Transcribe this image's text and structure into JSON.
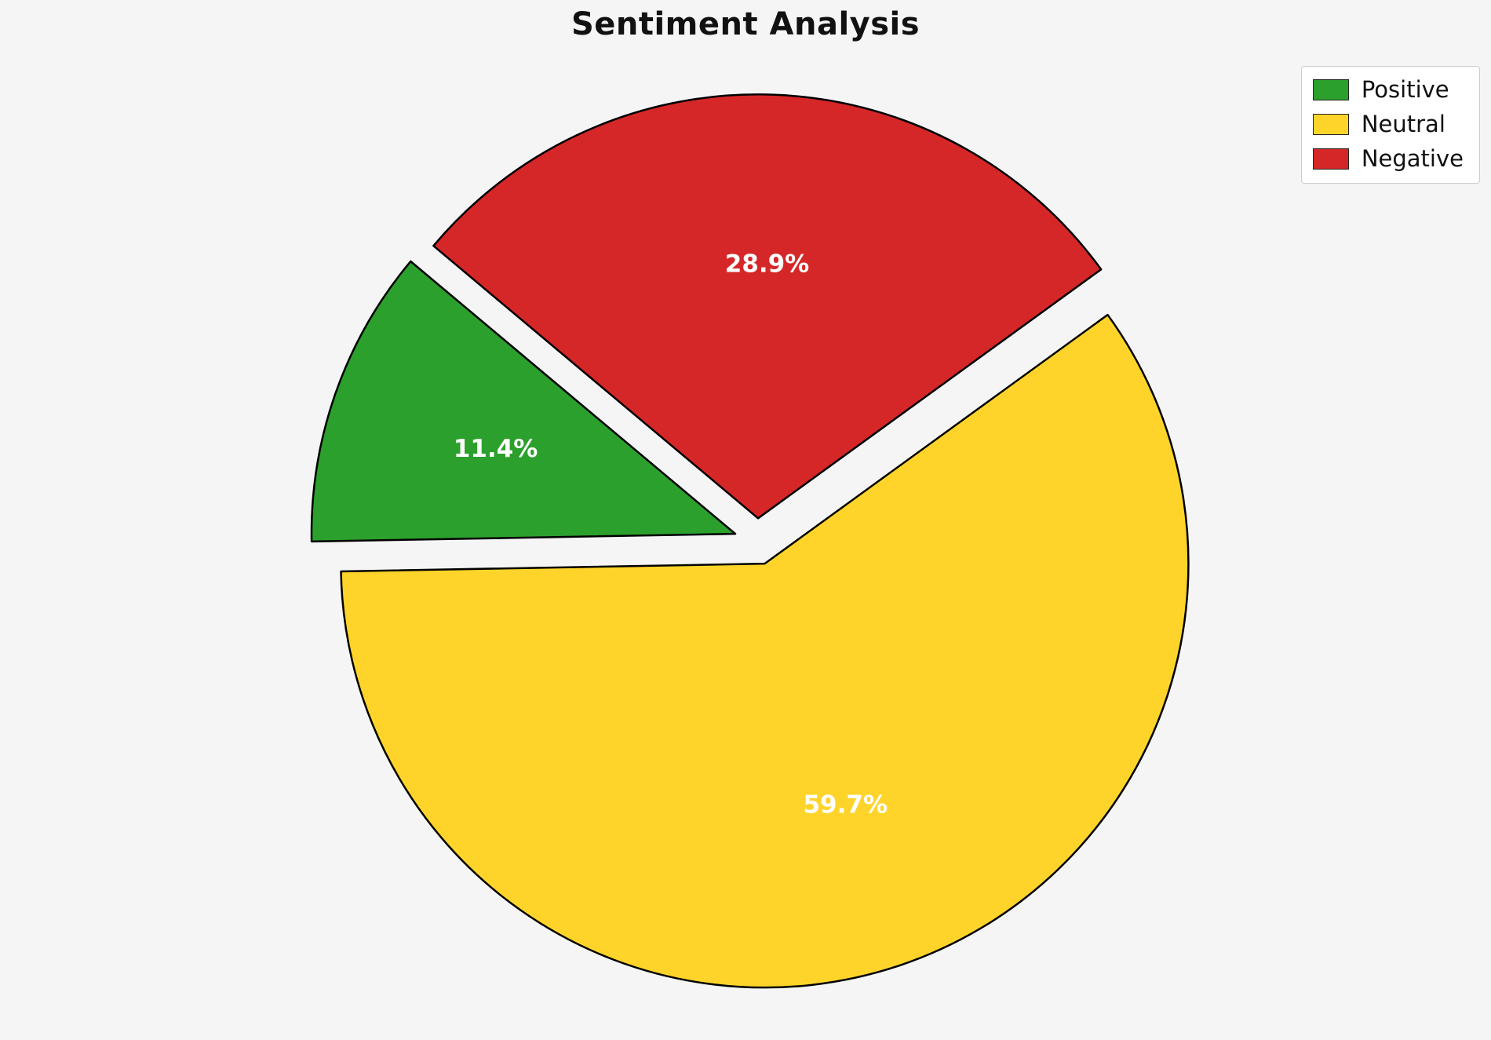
{
  "page": {
    "background_color": "#f5f5f5"
  },
  "chart_data": {
    "type": "pie",
    "title": "Sentiment Analysis",
    "slices": [
      {
        "label": "Positive",
        "value": 11.4,
        "pct_label": "11.4%",
        "color": "#2ca02c"
      },
      {
        "label": "Neutral",
        "value": 59.7,
        "pct_label": "59.7%",
        "color": "#ffd42a"
      },
      {
        "label": "Negative",
        "value": 28.9,
        "pct_label": "28.9%",
        "color": "#d62728"
      }
    ],
    "start_angle": 140,
    "counterclockwise": true,
    "explode": 0.055,
    "pct_distance": 0.6,
    "edge_color": "#000000",
    "label_color": "#ffffff",
    "legend_position": "upper right",
    "legend_entries": [
      "Positive",
      "Neutral",
      "Negative"
    ]
  }
}
